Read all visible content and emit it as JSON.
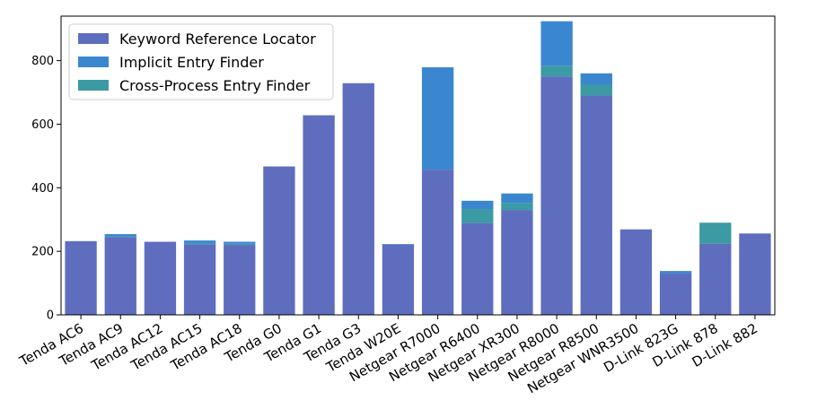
{
  "chart_data": {
    "type": "bar",
    "stacked": true,
    "categories": [
      "Tenda AC6",
      "Tenda AC9",
      "Tenda AC12",
      "Tenda AC15",
      "Tenda AC18",
      "Tenda G0",
      "Tenda G1",
      "Tenda G3",
      "Tenda W20E",
      "Netgear R7000",
      "Netgear R6400",
      "Netgear XR300",
      "Netgear R8000",
      "Netgear R8500",
      "Netgear WNR3500",
      "D-Link 823G",
      "D-Link 878",
      "D-Link 882"
    ],
    "series": [
      {
        "name": "Keyword Reference Locator",
        "color": "#5f6dbf",
        "values": [
          232,
          244,
          230,
          222,
          220,
          467,
          628,
          729,
          221,
          457,
          289,
          330,
          750,
          690,
          269,
          130,
          224,
          256
        ]
      },
      {
        "name": "Cross-Process Entry Finder",
        "color": "#3b9aa4",
        "values": [
          0,
          2,
          0,
          4,
          4,
          0,
          0,
          0,
          0,
          0,
          44,
          22,
          34,
          34,
          0,
          0,
          66,
          0
        ]
      },
      {
        "name": "Implicit Entry Finder",
        "color": "#3a87cf",
        "values": [
          0,
          8,
          0,
          8,
          6,
          0,
          0,
          0,
          2,
          322,
          26,
          30,
          140,
          36,
          0,
          8,
          0,
          0
        ]
      }
    ],
    "legend_order": [
      "Keyword Reference Locator",
      "Implicit Entry Finder",
      "Cross-Process Entry Finder"
    ],
    "ylim": [
      0,
      940
    ],
    "yticks": [
      0,
      200,
      400,
      600,
      800
    ],
    "legend_position": "top-left",
    "grid": false
  }
}
